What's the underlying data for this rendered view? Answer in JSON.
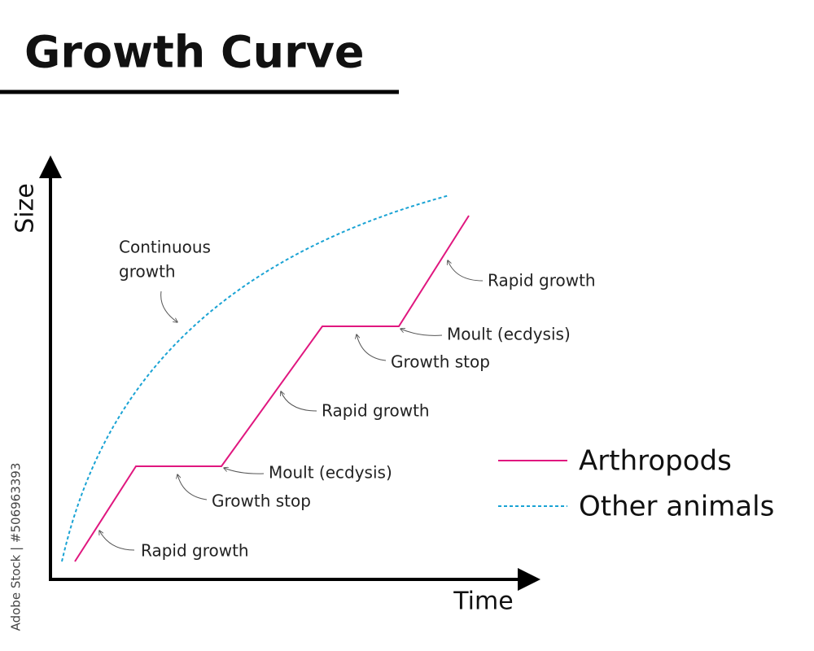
{
  "title": "Growth Curve",
  "axes": {
    "y": "Size",
    "x": "Time"
  },
  "annotations": [
    {
      "lines": [
        "Continuous",
        "growth"
      ]
    },
    {
      "lines": [
        "Rapid growth"
      ]
    },
    {
      "lines": [
        "Growth stop"
      ]
    },
    {
      "lines": [
        "Moult (ecdysis)"
      ]
    },
    {
      "lines": [
        "Rapid growth"
      ]
    },
    {
      "lines": [
        "Growth stop"
      ]
    },
    {
      "lines": [
        "Moult (ecdysis)"
      ]
    },
    {
      "lines": [
        "Rapid growth"
      ]
    }
  ],
  "legend": [
    "Arthropods",
    "Other animals"
  ],
  "watermark": "Adobe Stock | #506963393"
}
